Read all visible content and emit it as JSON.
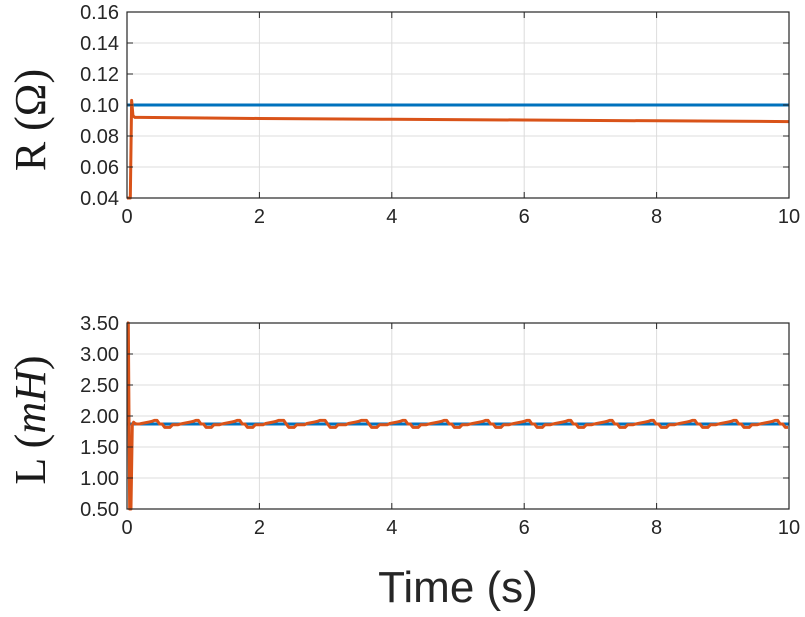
{
  "chart_data": [
    {
      "type": "line",
      "ylabel_parts": [
        "R (",
        "Ω",
        ")"
      ],
      "xlabel": "",
      "xlim": [
        0,
        10
      ],
      "ylim": [
        0.04,
        0.16
      ],
      "xticks": [
        "0",
        "2",
        "4",
        "6",
        "8",
        "10"
      ],
      "xtick_values": [
        0,
        2,
        4,
        6,
        8,
        10
      ],
      "yticks": [
        "0.04",
        "0.06",
        "0.08",
        "0.10",
        "0.12",
        "0.14",
        "0.16"
      ],
      "ytick_values": [
        0.04,
        0.06,
        0.08,
        0.1,
        0.12,
        0.14,
        0.16
      ],
      "grid": true,
      "series": [
        {
          "color": "#0072BD",
          "x": [
            0,
            10
          ],
          "y": [
            0.1,
            0.1
          ]
        },
        {
          "color": "#D95319",
          "x": [
            0,
            0.03,
            0.05,
            0.07,
            0.09,
            0.12,
            0.2,
            1,
            2,
            4,
            6,
            8,
            10
          ],
          "y": [
            0.04,
            0.04,
            0.04,
            0.103,
            0.093,
            0.092,
            0.092,
            0.0917,
            0.0913,
            0.0908,
            0.0903,
            0.0898,
            0.0893
          ]
        }
      ]
    },
    {
      "type": "line",
      "ylabel_parts": [
        "L (",
        "mH",
        ")"
      ],
      "xlabel": "Time (s)",
      "xlim": [
        0,
        10
      ],
      "ylim": [
        0.5,
        3.5
      ],
      "xticks": [
        "0",
        "2",
        "4",
        "6",
        "8",
        "10"
      ],
      "xtick_values": [
        0,
        2,
        4,
        6,
        8,
        10
      ],
      "yticks": [
        "0.50",
        "1.00",
        "1.50",
        "2.00",
        "2.50",
        "3.00",
        "3.50"
      ],
      "ytick_values": [
        0.5,
        1.0,
        1.5,
        2.0,
        2.5,
        3.0,
        3.5
      ],
      "grid": true,
      "series": [
        {
          "color": "#0072BD",
          "x": [
            0,
            10
          ],
          "y": [
            1.87,
            1.87
          ]
        },
        {
          "color": "#D95319",
          "x": [
            0,
            0.02,
            0.04,
            0.06,
            0.08,
            0.1,
            0.12,
            0.15,
            0.18
          ],
          "y": [
            3.5,
            3.5,
            0.5,
            0.5,
            1.85,
            1.9,
            1.88,
            1.87,
            1.87
          ],
          "oscillation": {
            "start": 0.18,
            "end": 10,
            "period": 0.625,
            "center": 1.87,
            "amplitude": 0.06
          }
        }
      ]
    }
  ]
}
